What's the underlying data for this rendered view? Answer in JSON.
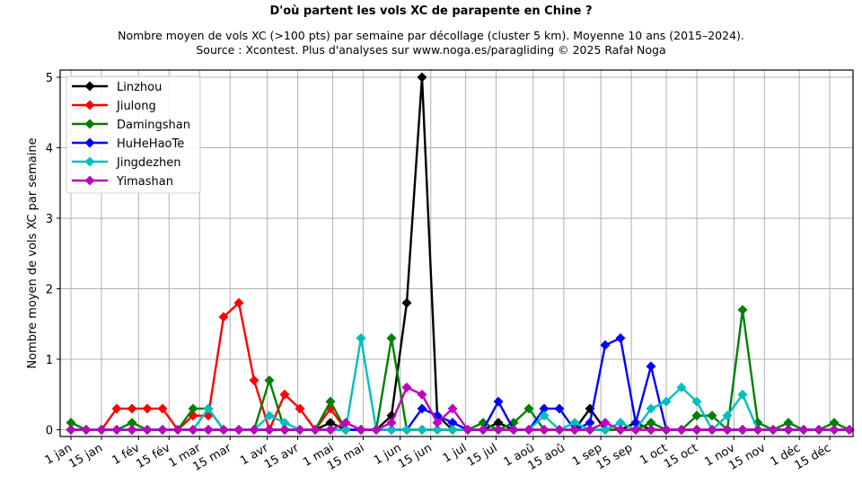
{
  "chart_data": {
    "type": "line",
    "title": "D'où partent les vols XC de parapente en Chine ?",
    "subtitle_lines": [
      "Nombre moyen de vols XC (>100 pts) par semaine par décollage (cluster 5 km). Moyenne 10 ans (2015–2024).",
      "Source : Xcontest. Plus d'analyses sur www.noga.es/paragliding © 2025 Rafał Noga"
    ],
    "xlabel": "",
    "ylabel": "Nombre moyen de vols XC par semaine",
    "ylim": [
      -0.1,
      5.1
    ],
    "yticks": [
      0,
      1,
      2,
      3,
      4,
      5
    ],
    "xtick_labels": [
      "1 jan",
      "15 jan",
      "1 fév",
      "15 fév",
      "1 mar",
      "15 mar",
      "1 avr",
      "15 avr",
      "1 mai",
      "15 mai",
      "1 jun",
      "15 jun",
      "1 jul",
      "15 jul",
      "1 aoû",
      "15 aoû",
      "1 sep",
      "15 sep",
      "1 oct",
      "15 oct",
      "1 nov",
      "15 nov",
      "1 déc",
      "15 déc"
    ],
    "grid": true,
    "legend_position": "upper left",
    "x_weeks": 52,
    "series": [
      {
        "name": "Linzhou",
        "color": "#000000",
        "values": [
          0,
          0,
          0,
          0,
          0,
          0,
          0,
          0,
          0,
          0,
          0,
          0,
          0,
          0,
          0,
          0,
          0,
          0.1,
          0,
          0,
          0,
          0.2,
          1.8,
          5.0,
          0.2,
          0,
          0,
          0,
          0.1,
          0,
          0,
          0,
          0,
          0,
          0.3,
          0,
          0,
          0.1,
          0,
          0,
          0,
          0,
          0,
          0,
          0,
          0,
          0,
          0,
          0,
          0,
          0,
          0
        ]
      },
      {
        "name": "Jiulong",
        "color": "#ff0000",
        "values": [
          0,
          0,
          0,
          0.3,
          0.3,
          0.3,
          0.3,
          0,
          0.2,
          0.2,
          1.6,
          1.8,
          0.7,
          0,
          0.5,
          0.3,
          0,
          0.3,
          0,
          0,
          0,
          0,
          0,
          0,
          0,
          0,
          0,
          0,
          0,
          0,
          0,
          0,
          0,
          0,
          0,
          0,
          0,
          0,
          0,
          0,
          0,
          0,
          0,
          0,
          0,
          0,
          0,
          0,
          0,
          0,
          0,
          0
        ]
      },
      {
        "name": "Damingshan",
        "color": "#008000",
        "values": [
          0.1,
          0,
          0,
          0,
          0.1,
          0,
          0,
          0,
          0.3,
          0.3,
          0,
          0,
          0,
          0.7,
          0,
          0,
          0,
          0.4,
          0,
          0,
          0,
          1.3,
          0,
          0,
          0,
          0,
          0,
          0.1,
          0,
          0.1,
          0.3,
          0,
          0,
          0,
          0,
          0,
          0,
          0,
          0.1,
          0,
          0,
          0.2,
          0.2,
          0,
          1.7,
          0.1,
          0,
          0.1,
          0,
          0,
          0.1,
          0
        ]
      },
      {
        "name": "HuHeHaoTe",
        "color": "#0000ff",
        "values": [
          0,
          0,
          0,
          0,
          0,
          0,
          0,
          0,
          0,
          0,
          0,
          0,
          0,
          0,
          0,
          0,
          0,
          0,
          0,
          0,
          0,
          0,
          0,
          0.3,
          0.2,
          0.1,
          0,
          0,
          0.4,
          0,
          0,
          0.3,
          0.3,
          0,
          0.1,
          1.2,
          1.3,
          0.1,
          0.9,
          0,
          0,
          0,
          0,
          0,
          0,
          0,
          0,
          0,
          0,
          0,
          0,
          0
        ]
      },
      {
        "name": "Jingdezhen",
        "color": "#00bfbf",
        "values": [
          0,
          0,
          0,
          0,
          0,
          0,
          0,
          0,
          0,
          0.3,
          0,
          0,
          0,
          0.2,
          0.1,
          0,
          0,
          0,
          0,
          1.3,
          0,
          0,
          0,
          0,
          0,
          0,
          0,
          0,
          0,
          0,
          0,
          0.2,
          0,
          0.1,
          0,
          0,
          0.1,
          0,
          0.3,
          0.4,
          0.6,
          0.4,
          0,
          0.2,
          0.5,
          0,
          0,
          0,
          0,
          0,
          0,
          0
        ]
      },
      {
        "name": "Yimashan",
        "color": "#bf00bf",
        "values": [
          0,
          0,
          0,
          0,
          0,
          0,
          0,
          0,
          0,
          0,
          0,
          0,
          0,
          0,
          0,
          0,
          0,
          0,
          0.1,
          0,
          0,
          0.1,
          0.6,
          0.5,
          0.1,
          0.3,
          0,
          0,
          0,
          0,
          0,
          0,
          0,
          0,
          0,
          0.1,
          0,
          0,
          0,
          0,
          0,
          0,
          0,
          0,
          0,
          0,
          0,
          0,
          0,
          0,
          0,
          0
        ]
      }
    ]
  }
}
